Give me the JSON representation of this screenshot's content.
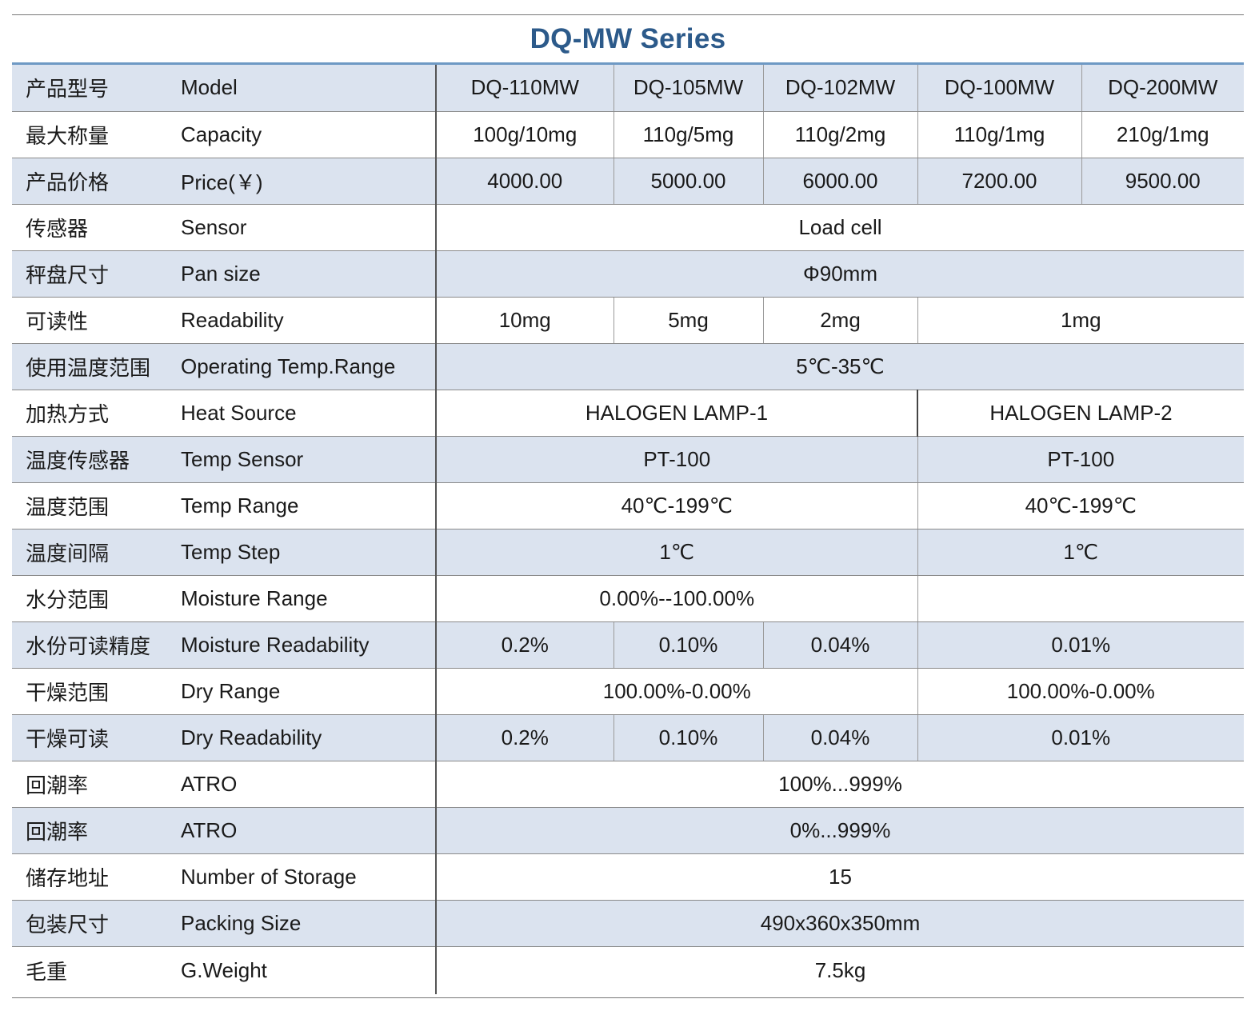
{
  "title": "DQ-MW Series",
  "rows": [
    {
      "zh": "产品型号",
      "en": "Model",
      "shaded": true,
      "cells": [
        {
          "text": "DQ-110MW",
          "span": 1
        },
        {
          "text": "DQ-105MW",
          "span": 1
        },
        {
          "text": "DQ-102MW",
          "span": 1
        },
        {
          "text": "DQ-100MW",
          "span": 1
        },
        {
          "text": "DQ-200MW",
          "span": 1
        }
      ]
    },
    {
      "zh": "最大称量",
      "en": "Capacity",
      "shaded": false,
      "cells": [
        {
          "text": "100g/10mg",
          "span": 1
        },
        {
          "text": "110g/5mg",
          "span": 1
        },
        {
          "text": "110g/2mg",
          "span": 1
        },
        {
          "text": "110g/1mg",
          "span": 1
        },
        {
          "text": "210g/1mg",
          "span": 1
        }
      ]
    },
    {
      "zh": "产品价格",
      "en": "Price(￥)",
      "shaded": true,
      "cells": [
        {
          "text": "4000.00",
          "span": 1
        },
        {
          "text": "5000.00",
          "span": 1
        },
        {
          "text": "6000.00",
          "span": 1
        },
        {
          "text": "7200.00",
          "span": 1
        },
        {
          "text": "9500.00",
          "span": 1
        }
      ]
    },
    {
      "zh": "传感器",
      "en": "Sensor",
      "shaded": false,
      "cells": [
        {
          "text": "Load cell",
          "span": 5
        }
      ]
    },
    {
      "zh": "秤盘尺寸",
      "en": "Pan size",
      "shaded": true,
      "cells": [
        {
          "text": "Φ90mm",
          "span": 5
        }
      ]
    },
    {
      "zh": "可读性",
      "en": "Readability",
      "shaded": false,
      "cells": [
        {
          "text": "10mg",
          "span": 1
        },
        {
          "text": "5mg",
          "span": 1
        },
        {
          "text": "2mg",
          "span": 1
        },
        {
          "text": "1mg",
          "span": 2
        }
      ]
    },
    {
      "zh": "使用温度范围",
      "en": "Operating Temp.Range",
      "shaded": true,
      "cells": [
        {
          "text": "5℃-35℃",
          "span": 5
        }
      ]
    },
    {
      "zh": "加热方式",
      "en": "Heat Source",
      "shaded": false,
      "cells": [
        {
          "text": "HALOGEN LAMP-1",
          "span": 3
        },
        {
          "text": "HALOGEN LAMP-2",
          "span": 2,
          "strong": true
        }
      ]
    },
    {
      "zh": "温度传感器",
      "en": "Temp Sensor",
      "shaded": true,
      "cells": [
        {
          "text": "PT-100",
          "span": 3
        },
        {
          "text": "PT-100",
          "span": 2
        }
      ]
    },
    {
      "zh": "温度范围",
      "en": "Temp Range",
      "shaded": false,
      "cells": [
        {
          "text": "40℃-199℃",
          "span": 3
        },
        {
          "text": "40℃-199℃",
          "span": 2
        }
      ]
    },
    {
      "zh": "温度间隔",
      "en": "Temp Step",
      "shaded": true,
      "cells": [
        {
          "text": "1℃",
          "span": 3
        },
        {
          "text": "1℃",
          "span": 2
        }
      ]
    },
    {
      "zh": "水分范围",
      "en": "Moisture Range",
      "shaded": false,
      "cells": [
        {
          "text": "0.00%--100.00%",
          "span": 3
        },
        {
          "text": "",
          "span": 2
        }
      ]
    },
    {
      "zh": "水份可读精度",
      "en": "Moisture Readability",
      "shaded": true,
      "cells": [
        {
          "text": "0.2%",
          "span": 1
        },
        {
          "text": "0.10%",
          "span": 1
        },
        {
          "text": "0.04%",
          "span": 1
        },
        {
          "text": "0.01%",
          "span": 2
        }
      ]
    },
    {
      "zh": "干燥范围",
      "en": "Dry Range",
      "shaded": false,
      "cells": [
        {
          "text": "100.00%-0.00%",
          "span": 3
        },
        {
          "text": "100.00%-0.00%",
          "span": 2
        }
      ]
    },
    {
      "zh": "干燥可读",
      "en": "Dry Readability",
      "shaded": true,
      "cells": [
        {
          "text": "0.2%",
          "span": 1
        },
        {
          "text": "0.10%",
          "span": 1
        },
        {
          "text": "0.04%",
          "span": 1
        },
        {
          "text": "0.01%",
          "span": 2
        }
      ]
    },
    {
      "zh": "回潮率",
      "en": "ATRO",
      "shaded": false,
      "cells": [
        {
          "text": "100%...999%",
          "span": 5
        }
      ]
    },
    {
      "zh": "回潮率",
      "en": "ATRO",
      "shaded": true,
      "cells": [
        {
          "text": "0%...999%",
          "span": 5
        }
      ]
    },
    {
      "zh": "储存地址",
      "en": "Number of Storage",
      "shaded": false,
      "cells": [
        {
          "text": "15",
          "span": 5
        }
      ]
    },
    {
      "zh": "包装尺寸",
      "en": "Packing Size",
      "shaded": true,
      "cells": [
        {
          "text": "490x360x350mm",
          "span": 5
        }
      ]
    },
    {
      "zh": "毛重",
      "en": "G.Weight",
      "shaded": false,
      "cells": [
        {
          "text": "7.5kg",
          "span": 5
        }
      ]
    }
  ]
}
